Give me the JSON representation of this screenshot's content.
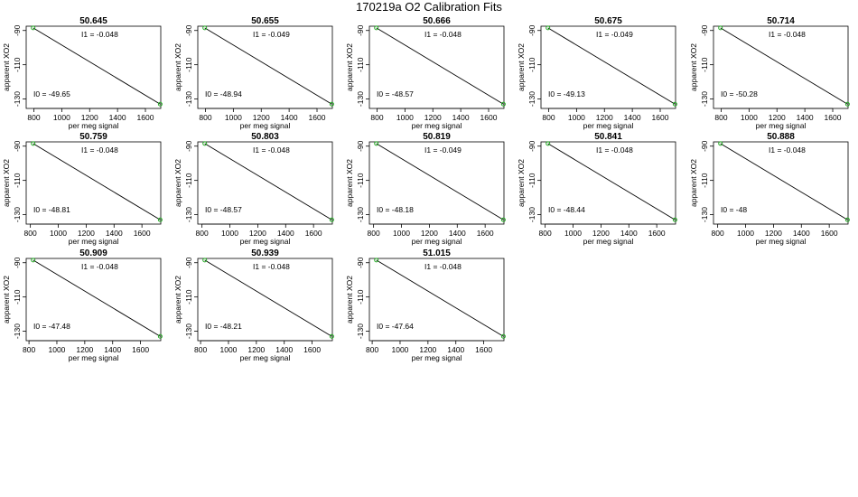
{
  "page": {
    "title": "170219a   O2 Calibration Fits",
    "colors": {
      "line": "#000000",
      "points": "#22aa22",
      "frame": "#000000"
    }
  },
  "chart_data": [
    {
      "type": "line",
      "title": "50.645",
      "xlabel": "per meg signal",
      "ylabel": "apparent XO2",
      "xticks": [
        800,
        1000,
        1200,
        1400,
        1600
      ],
      "yticks": [
        -90,
        -110,
        -130
      ],
      "xlim": [
        745,
        1710
      ],
      "ylim": [
        -135.5,
        -87.5
      ],
      "line_x": [
        795,
        1706
      ],
      "line_y": [
        -88.5,
        -133.0
      ],
      "points_x": [
        795,
        1706
      ],
      "points_y": [
        -88.5,
        -133.0
      ],
      "intercept_text": "I0 =  -49.65",
      "slope_text": "I1 =  -0.048"
    },
    {
      "type": "line",
      "title": "50.655",
      "xlabel": "per meg signal",
      "ylabel": "apparent XO2",
      "xticks": [
        800,
        1000,
        1200,
        1400,
        1600
      ],
      "yticks": [
        -90,
        -110,
        -130
      ],
      "xlim": [
        745,
        1710
      ],
      "ylim": [
        -135.5,
        -87.5
      ],
      "line_x": [
        795,
        1706
      ],
      "line_y": [
        -88.5,
        -133.0
      ],
      "points_x": [
        795,
        1706
      ],
      "points_y": [
        -88.5,
        -133.0
      ],
      "intercept_text": "I0 =  -48.94",
      "slope_text": "I1 =  -0.049"
    },
    {
      "type": "line",
      "title": "50.666",
      "xlabel": "per meg signal",
      "ylabel": "apparent XO2",
      "xticks": [
        800,
        1000,
        1200,
        1400,
        1600
      ],
      "yticks": [
        -90,
        -110,
        -130
      ],
      "xlim": [
        745,
        1710
      ],
      "ylim": [
        -135.5,
        -87.5
      ],
      "line_x": [
        795,
        1706
      ],
      "line_y": [
        -88.5,
        -133.0
      ],
      "points_x": [
        795,
        1706
      ],
      "points_y": [
        -88.5,
        -133.0
      ],
      "intercept_text": "I0 =  -48.57",
      "slope_text": "I1 =  -0.048"
    },
    {
      "type": "line",
      "title": "50.675",
      "xlabel": "per meg signal",
      "ylabel": "apparent XO2",
      "xticks": [
        800,
        1000,
        1200,
        1400,
        1600
      ],
      "yticks": [
        -90,
        -110,
        -130
      ],
      "xlim": [
        745,
        1710
      ],
      "ylim": [
        -135.5,
        -87.5
      ],
      "line_x": [
        795,
        1706
      ],
      "line_y": [
        -88.5,
        -133.0
      ],
      "points_x": [
        795,
        1706
      ],
      "points_y": [
        -88.5,
        -133.0
      ],
      "intercept_text": "I0 =  -49.13",
      "slope_text": "I1 =  -0.049"
    },
    {
      "type": "line",
      "title": "50.714",
      "xlabel": "per meg signal",
      "ylabel": "apparent XO2",
      "xticks": [
        800,
        1000,
        1200,
        1400,
        1600
      ],
      "yticks": [
        -90,
        -110,
        -130
      ],
      "xlim": [
        745,
        1710
      ],
      "ylim": [
        -135.5,
        -87.5
      ],
      "line_x": [
        795,
        1706
      ],
      "line_y": [
        -88.5,
        -133.0
      ],
      "points_x": [
        795,
        1706
      ],
      "points_y": [
        -88.5,
        -133.0
      ],
      "intercept_text": "I0 =  -50.28",
      "slope_text": "I1 =  -0.048"
    },
    {
      "type": "line",
      "title": "50.759",
      "xlabel": "per meg signal",
      "ylabel": "apparent XO2",
      "xticks": [
        800,
        1000,
        1200,
        1400,
        1600
      ],
      "yticks": [
        -90,
        -110,
        -130
      ],
      "xlim": [
        770,
        1735
      ],
      "ylim": [
        -135.5,
        -87.5
      ],
      "line_x": [
        820,
        1731
      ],
      "line_y": [
        -88.5,
        -133.0
      ],
      "points_x": [
        820,
        1731
      ],
      "points_y": [
        -88.5,
        -133.0
      ],
      "intercept_text": "I0 =  -48.81",
      "slope_text": "I1 =  -0.048"
    },
    {
      "type": "line",
      "title": "50.803",
      "xlabel": "per meg signal",
      "ylabel": "apparent XO2",
      "xticks": [
        800,
        1000,
        1200,
        1400,
        1600
      ],
      "yticks": [
        -90,
        -110,
        -130
      ],
      "xlim": [
        770,
        1735
      ],
      "ylim": [
        -135.5,
        -87.5
      ],
      "line_x": [
        820,
        1731
      ],
      "line_y": [
        -88.5,
        -133.0
      ],
      "points_x": [
        820,
        1731
      ],
      "points_y": [
        -88.5,
        -133.0
      ],
      "intercept_text": "I0 =  -48.57",
      "slope_text": "I1 =  -0.048"
    },
    {
      "type": "line",
      "title": "50.819",
      "xlabel": "per meg signal",
      "ylabel": "apparent XO2",
      "xticks": [
        800,
        1000,
        1200,
        1400,
        1600
      ],
      "yticks": [
        -90,
        -110,
        -130
      ],
      "xlim": [
        770,
        1735
      ],
      "ylim": [
        -135.5,
        -87.5
      ],
      "line_x": [
        820,
        1731
      ],
      "line_y": [
        -88.5,
        -133.0
      ],
      "points_x": [
        820,
        1731
      ],
      "points_y": [
        -88.5,
        -133.0
      ],
      "intercept_text": "I0 =  -48.18",
      "slope_text": "I1 =  -0.049"
    },
    {
      "type": "line",
      "title": "50.841",
      "xlabel": "per meg signal",
      "ylabel": "apparent XO2",
      "xticks": [
        800,
        1000,
        1200,
        1400,
        1600
      ],
      "yticks": [
        -90,
        -110,
        -130
      ],
      "xlim": [
        770,
        1735
      ],
      "ylim": [
        -135.5,
        -87.5
      ],
      "line_x": [
        820,
        1731
      ],
      "line_y": [
        -88.5,
        -133.0
      ],
      "points_x": [
        820,
        1731
      ],
      "points_y": [
        -88.5,
        -133.0
      ],
      "intercept_text": "I0 =  -48.44",
      "slope_text": "I1 =  -0.048"
    },
    {
      "type": "line",
      "title": "50.888",
      "xlabel": "per meg signal",
      "ylabel": "apparent XO2",
      "xticks": [
        800,
        1000,
        1200,
        1400,
        1600
      ],
      "yticks": [
        -90,
        -110,
        -130
      ],
      "xlim": [
        770,
        1735
      ],
      "ylim": [
        -135.5,
        -87.5
      ],
      "line_x": [
        820,
        1731
      ],
      "line_y": [
        -88.5,
        -133.0
      ],
      "points_x": [
        820,
        1731
      ],
      "points_y": [
        -88.5,
        -133.0
      ],
      "intercept_text": "I0 =  -48",
      "slope_text": "I1 =  -0.048"
    },
    {
      "type": "line",
      "title": "50.909",
      "xlabel": "per meg signal",
      "ylabel": "apparent XO2",
      "xticks": [
        800,
        1000,
        1200,
        1400,
        1600
      ],
      "yticks": [
        -90,
        -110,
        -130
      ],
      "xlim": [
        780,
        1745
      ],
      "ylim": [
        -135.5,
        -87.5
      ],
      "line_x": [
        830,
        1741
      ],
      "line_y": [
        -88.5,
        -133.0
      ],
      "points_x": [
        830,
        1741
      ],
      "points_y": [
        -88.5,
        -133.0
      ],
      "intercept_text": "I0 =  -47.48",
      "slope_text": "I1 =  -0.048"
    },
    {
      "type": "line",
      "title": "50.939",
      "xlabel": "per meg signal",
      "ylabel": "apparent XO2",
      "xticks": [
        800,
        1000,
        1200,
        1400,
        1600
      ],
      "yticks": [
        -90,
        -110,
        -130
      ],
      "xlim": [
        780,
        1745
      ],
      "ylim": [
        -135.5,
        -87.5
      ],
      "line_x": [
        830,
        1741
      ],
      "line_y": [
        -88.5,
        -133.0
      ],
      "points_x": [
        830,
        1741
      ],
      "points_y": [
        -88.5,
        -133.0
      ],
      "intercept_text": "I0 =  -48.21",
      "slope_text": "I1 =  -0.048"
    },
    {
      "type": "line",
      "title": "51.015",
      "xlabel": "per meg signal",
      "ylabel": "apparent XO2",
      "xticks": [
        800,
        1000,
        1200,
        1400,
        1600
      ],
      "yticks": [
        -90,
        -110,
        -130
      ],
      "xlim": [
        780,
        1745
      ],
      "ylim": [
        -135.5,
        -87.5
      ],
      "line_x": [
        830,
        1741
      ],
      "line_y": [
        -88.5,
        -133.0
      ],
      "points_x": [
        830,
        1741
      ],
      "points_y": [
        -88.5,
        -133.0
      ],
      "intercept_text": "I0 =  -47.64",
      "slope_text": "I1 =  -0.048"
    }
  ]
}
